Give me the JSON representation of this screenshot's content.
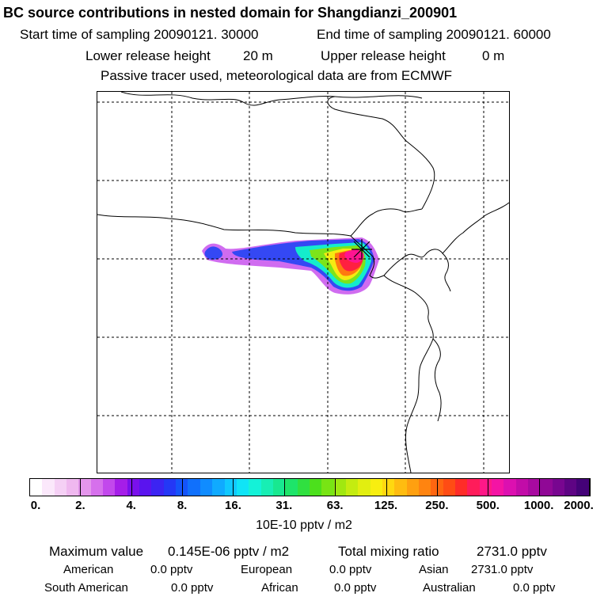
{
  "header": {
    "title": "BC  source contributions in nested domain for Shangdianzi_200901",
    "start_label": "Start time of sampling 20090121. 30000",
    "end_label": "End time of sampling 20090121. 60000",
    "lower_label": "Lower release height",
    "lower_value": "20 m",
    "upper_label": "Upper release height",
    "upper_value": "0 m",
    "tracer_note": "Passive tracer used, meteorological data are from ECMWF"
  },
  "chart_data": {
    "type": "heatmap",
    "title": "BC  source contributions in nested domain for Shangdianzi_200901",
    "units": "10E-10 pptv / m2",
    "colorbar_ticks": [
      "0.",
      "2.",
      "4.",
      "8.",
      "16.",
      "31.",
      "63.",
      "125.",
      "250.",
      "500.",
      "1000.",
      "2000."
    ],
    "colorbar_colors": [
      "#ffffff",
      "#fbe8fb",
      "#f5d0f5",
      "#efb8ef",
      "#e496ec",
      "#d670ec",
      "#c248ec",
      "#a51ee8",
      "#7a10ec",
      "#5a14ee",
      "#3c24f2",
      "#2438f6",
      "#1454fa",
      "#1070fc",
      "#108cff",
      "#10aaff",
      "#10c8ff",
      "#10e4f6",
      "#14f2d8",
      "#18eeb4",
      "#18e890",
      "#1ee46a",
      "#30e040",
      "#4ce01c",
      "#78e414",
      "#a0e810",
      "#c4ec10",
      "#e2ee10",
      "#f8ee10",
      "#ffd810",
      "#ffbc10",
      "#ffa010",
      "#ff8410",
      "#ff6610",
      "#ff4c14",
      "#ff2c28",
      "#ff1c5a",
      "#ff1888",
      "#f414a4",
      "#dc10b0",
      "#c20ca8",
      "#a80aa0",
      "#900896",
      "#780690",
      "#5e0484",
      "#440278"
    ],
    "plume_levels": [
      "4.",
      "16.",
      "63.",
      "125.",
      "250.",
      "1000."
    ],
    "receptor": "Shangdianzi"
  },
  "stats": {
    "max_label": "Maximum value",
    "max_value": "0.145E-06 pptv / m2",
    "total_label": "Total mixing ratio",
    "total_value": "2731.0 pptv"
  },
  "sources": [
    {
      "name": "American",
      "value": "0.0 pptv"
    },
    {
      "name": "European",
      "value": "0.0 pptv"
    },
    {
      "name": "Asian",
      "value": "2731.0 pptv"
    },
    {
      "name": "South American",
      "value": "0.0 pptv"
    },
    {
      "name": "African",
      "value": "0.0 pptv"
    },
    {
      "name": "Australian",
      "value": "0.0 pptv"
    }
  ]
}
